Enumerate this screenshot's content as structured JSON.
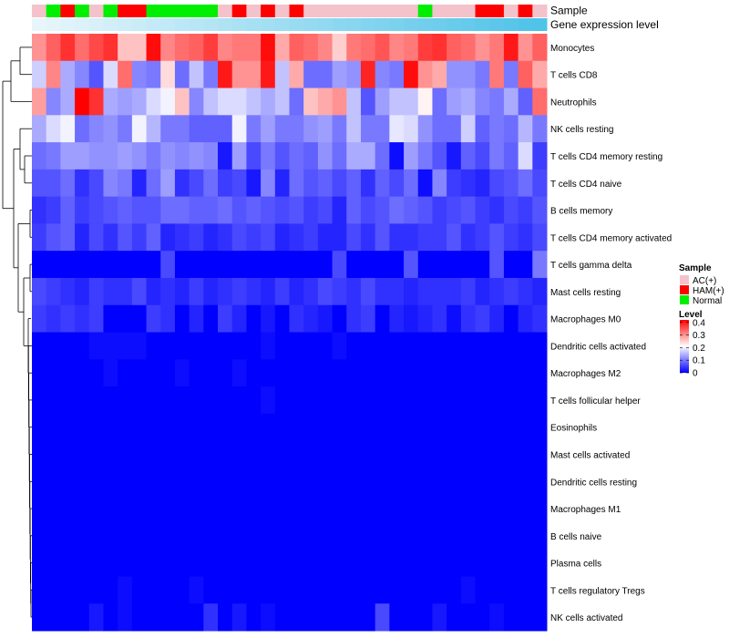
{
  "chart_data": {
    "type": "heatmap",
    "title": "",
    "annotation_labels": {
      "sample": "Sample",
      "gene": "Gene expression level"
    },
    "sample_legend": {
      "title": "Sample",
      "entries": [
        {
          "label": "AC(+)",
          "color": "#F4C2CB"
        },
        {
          "label": "HAM(+)",
          "color": "#FF0000"
        },
        {
          "label": "Normal",
          "color": "#00EE00"
        }
      ]
    },
    "level_legend": {
      "title": "Level",
      "ticks": [
        "0.4",
        "0.3",
        "0.2",
        "0.1",
        "0"
      ],
      "tick_values": [
        0.4,
        0.3,
        0.2,
        0.1,
        0
      ],
      "range": [
        0,
        0.42
      ],
      "colors": [
        "#0000FF",
        "#FFFFFF",
        "#FF0000"
      ]
    },
    "sample_groups": [
      "AC",
      "N",
      "H",
      "N",
      "AC",
      "N",
      "H",
      "H",
      "N",
      "N",
      "N",
      "N",
      "N",
      "AC",
      "H",
      "AC",
      "H",
      "AC",
      "H",
      "AC",
      "AC",
      "AC",
      "AC",
      "AC",
      "AC",
      "AC",
      "AC",
      "N",
      "AC",
      "AC",
      "AC",
      "H",
      "H",
      "AC",
      "H",
      "AC"
    ],
    "gene_expression_gradient": [
      "#E8F6FB",
      "#4FC3E8"
    ],
    "rows": [
      "Monocytes",
      "T cells CD8",
      "Neutrophils",
      "NK cells resting",
      "T cells CD4 memory resting",
      "T cells CD4 naive",
      "B cells memory",
      "T cells CD4 memory activated",
      "T cells gamma delta",
      "Mast cells resting",
      "Macrophages M0",
      "Dendritic cells activated",
      "Macrophages M2",
      "T cells follicular helper",
      "Eosinophils",
      "Mast cells activated",
      "Dendritic cells resting",
      "Macrophages M1",
      "B cells naive",
      "Plasma cells",
      "T cells regulatory  Tregs",
      "NK cells activated"
    ],
    "values": [
      [
        0.3,
        0.34,
        0.38,
        0.33,
        0.36,
        0.38,
        0.26,
        0.26,
        0.41,
        0.31,
        0.33,
        0.34,
        0.37,
        0.31,
        0.32,
        0.32,
        0.41,
        0.28,
        0.34,
        0.33,
        0.31,
        0.25,
        0.32,
        0.33,
        0.35,
        0.31,
        0.32,
        0.37,
        0.38,
        0.34,
        0.33,
        0.3,
        0.32,
        0.4,
        0.3,
        0.34
      ],
      [
        0.17,
        0.31,
        0.14,
        0.11,
        0.07,
        0.18,
        0.33,
        0.11,
        0.1,
        0.24,
        0.09,
        0.16,
        0.1,
        0.4,
        0.3,
        0.3,
        0.4,
        0.16,
        0.28,
        0.09,
        0.09,
        0.13,
        0.12,
        0.39,
        0.11,
        0.1,
        0.41,
        0.3,
        0.28,
        0.12,
        0.12,
        0.1,
        0.32,
        0.1,
        0.34,
        0.28
      ],
      [
        0.29,
        0.11,
        0.14,
        0.42,
        0.38,
        0.14,
        0.13,
        0.14,
        0.18,
        0.2,
        0.26,
        0.11,
        0.16,
        0.18,
        0.18,
        0.16,
        0.14,
        0.16,
        0.09,
        0.26,
        0.28,
        0.3,
        0.16,
        0.07,
        0.13,
        0.16,
        0.16,
        0.22,
        0.09,
        0.13,
        0.14,
        0.11,
        0.1,
        0.14,
        0.08,
        0.33
      ],
      [
        0.14,
        0.18,
        0.2,
        0.09,
        0.11,
        0.12,
        0.1,
        0.2,
        0.15,
        0.1,
        0.1,
        0.08,
        0.08,
        0.08,
        0.2,
        0.1,
        0.13,
        0.1,
        0.1,
        0.12,
        0.13,
        0.1,
        0.16,
        0.1,
        0.1,
        0.19,
        0.18,
        0.12,
        0.09,
        0.09,
        0.17,
        0.08,
        0.1,
        0.09,
        0.15,
        0.1
      ],
      [
        0.09,
        0.1,
        0.13,
        0.13,
        0.12,
        0.12,
        0.13,
        0.12,
        0.1,
        0.12,
        0.11,
        0.12,
        0.11,
        0.02,
        0.13,
        0.06,
        0.1,
        0.07,
        0.09,
        0.08,
        0.12,
        0.09,
        0.14,
        0.14,
        0.09,
        0.01,
        0.13,
        0.1,
        0.07,
        0.02,
        0.08,
        0.06,
        0.1,
        0.08,
        0.18,
        0.05
      ],
      [
        0.07,
        0.07,
        0.09,
        0.04,
        0.06,
        0.11,
        0.1,
        0.03,
        0.09,
        0.13,
        0.04,
        0.06,
        0.09,
        0.05,
        0.06,
        0.02,
        0.11,
        0.03,
        0.09,
        0.07,
        0.08,
        0.06,
        0.08,
        0.04,
        0.08,
        0.06,
        0.09,
        0.01,
        0.11,
        0.05,
        0.04,
        0.03,
        0.06,
        0.07,
        0.09,
        0.06
      ],
      [
        0.04,
        0.05,
        0.08,
        0.05,
        0.06,
        0.07,
        0.08,
        0.07,
        0.07,
        0.09,
        0.09,
        0.08,
        0.08,
        0.09,
        0.07,
        0.08,
        0.07,
        0.06,
        0.07,
        0.05,
        0.06,
        0.03,
        0.08,
        0.06,
        0.07,
        0.09,
        0.08,
        0.07,
        0.05,
        0.06,
        0.07,
        0.05,
        0.04,
        0.06,
        0.05,
        0.07
      ],
      [
        0.05,
        0.07,
        0.08,
        0.03,
        0.06,
        0.04,
        0.07,
        0.05,
        0.08,
        0.03,
        0.04,
        0.05,
        0.03,
        0.04,
        0.06,
        0.05,
        0.06,
        0.03,
        0.04,
        0.05,
        0.03,
        0.03,
        0.06,
        0.04,
        0.07,
        0.04,
        0.04,
        0.05,
        0.05,
        0.07,
        0.04,
        0.05,
        0.07,
        0.05,
        0.04,
        0.06
      ],
      [
        0.0,
        0.0,
        0.0,
        0.0,
        0.0,
        0.0,
        0.0,
        0.0,
        0.0,
        0.06,
        0.0,
        0.0,
        0.0,
        0.0,
        0.0,
        0.0,
        0.0,
        0.0,
        0.0,
        0.0,
        0.0,
        0.06,
        0.0,
        0.0,
        0.0,
        0.0,
        0.07,
        0.0,
        0.0,
        0.0,
        0.0,
        0.0,
        0.07,
        0.0,
        0.0,
        0.1
      ],
      [
        0.06,
        0.05,
        0.04,
        0.03,
        0.05,
        0.04,
        0.04,
        0.06,
        0.03,
        0.04,
        0.03,
        0.05,
        0.03,
        0.04,
        0.05,
        0.04,
        0.03,
        0.05,
        0.03,
        0.04,
        0.06,
        0.05,
        0.04,
        0.06,
        0.04,
        0.04,
        0.03,
        0.04,
        0.04,
        0.04,
        0.05,
        0.03,
        0.04,
        0.05,
        0.04,
        0.03
      ],
      [
        0.05,
        0.04,
        0.05,
        0.04,
        0.05,
        0.0,
        0.0,
        0.0,
        0.05,
        0.04,
        0.0,
        0.03,
        0.0,
        0.05,
        0.03,
        0.0,
        0.02,
        0.0,
        0.04,
        0.03,
        0.02,
        0.0,
        0.04,
        0.05,
        0.0,
        0.03,
        0.02,
        0.03,
        0.04,
        0.01,
        0.04,
        0.05,
        0.03,
        0.0,
        0.03,
        0.04
      ],
      [
        0.0,
        0.0,
        0.0,
        0.0,
        0.01,
        0.01,
        0.01,
        0.01,
        0.0,
        0.0,
        0.0,
        0.0,
        0.0,
        0.0,
        0.0,
        0.0,
        0.01,
        0.0,
        0.0,
        0.0,
        0.0,
        0.01,
        0.0,
        0.0,
        0.0,
        0.0,
        0.0,
        0.0,
        0.0,
        0.0,
        0.0,
        0.0,
        0.0,
        0.0,
        0.0,
        0.0
      ],
      [
        0.0,
        0.0,
        0.0,
        0.0,
        0.0,
        0.01,
        0.0,
        0.0,
        0.0,
        0.0,
        0.01,
        0.0,
        0.0,
        0.0,
        0.01,
        0.0,
        0.0,
        0.0,
        0.0,
        0.0,
        0.0,
        0.0,
        0.0,
        0.0,
        0.0,
        0.0,
        0.0,
        0.0,
        0.0,
        0.0,
        0.0,
        0.0,
        0.0,
        0.0,
        0.0,
        0.0
      ],
      [
        0,
        0,
        0,
        0,
        0,
        0,
        0,
        0,
        0,
        0,
        0,
        0,
        0,
        0,
        0,
        0,
        0.01,
        0,
        0,
        0,
        0,
        0,
        0,
        0,
        0,
        0,
        0,
        0,
        0,
        0,
        0,
        0,
        0,
        0,
        0,
        0
      ],
      [
        0,
        0,
        0,
        0,
        0,
        0,
        0,
        0,
        0,
        0,
        0,
        0,
        0,
        0,
        0,
        0,
        0,
        0,
        0,
        0,
        0,
        0,
        0,
        0,
        0,
        0,
        0,
        0,
        0,
        0,
        0,
        0,
        0,
        0,
        0,
        0
      ],
      [
        0,
        0,
        0,
        0,
        0,
        0,
        0,
        0,
        0,
        0,
        0,
        0,
        0,
        0,
        0,
        0,
        0,
        0,
        0,
        0,
        0,
        0,
        0,
        0,
        0,
        0,
        0,
        0,
        0,
        0,
        0,
        0,
        0,
        0,
        0,
        0
      ],
      [
        0,
        0,
        0,
        0,
        0,
        0,
        0,
        0,
        0,
        0,
        0,
        0,
        0,
        0,
        0,
        0,
        0,
        0,
        0,
        0,
        0,
        0,
        0,
        0,
        0,
        0,
        0,
        0,
        0,
        0,
        0,
        0,
        0,
        0,
        0,
        0
      ],
      [
        0,
        0,
        0,
        0,
        0,
        0,
        0,
        0,
        0,
        0,
        0,
        0,
        0,
        0,
        0,
        0,
        0,
        0,
        0,
        0,
        0,
        0,
        0,
        0,
        0,
        0,
        0,
        0,
        0,
        0,
        0,
        0,
        0,
        0,
        0,
        0
      ],
      [
        0,
        0,
        0,
        0,
        0,
        0,
        0,
        0,
        0,
        0,
        0,
        0,
        0,
        0,
        0,
        0,
        0,
        0,
        0,
        0,
        0,
        0,
        0,
        0,
        0,
        0,
        0,
        0,
        0,
        0,
        0,
        0,
        0,
        0,
        0,
        0
      ],
      [
        0,
        0,
        0,
        0,
        0,
        0,
        0,
        0,
        0,
        0,
        0,
        0,
        0,
        0,
        0,
        0,
        0,
        0,
        0,
        0,
        0,
        0,
        0,
        0,
        0,
        0,
        0,
        0,
        0,
        0,
        0,
        0,
        0,
        0,
        0,
        0
      ],
      [
        0,
        0,
        0,
        0,
        0,
        0,
        0.01,
        0,
        0,
        0,
        0,
        0.01,
        0,
        0,
        0,
        0,
        0,
        0,
        0,
        0,
        0,
        0,
        0,
        0,
        0,
        0,
        0,
        0,
        0,
        0,
        0.01,
        0,
        0,
        0,
        0,
        0
      ],
      [
        0,
        0,
        0,
        0,
        0.02,
        0,
        0.01,
        0,
        0,
        0,
        0,
        0,
        0.04,
        0,
        0.02,
        0,
        0.01,
        0,
        0,
        0,
        0,
        0,
        0,
        0,
        0.06,
        0,
        0,
        0,
        0.02,
        0,
        0,
        0,
        0.01,
        0,
        0,
        0
      ]
    ]
  }
}
